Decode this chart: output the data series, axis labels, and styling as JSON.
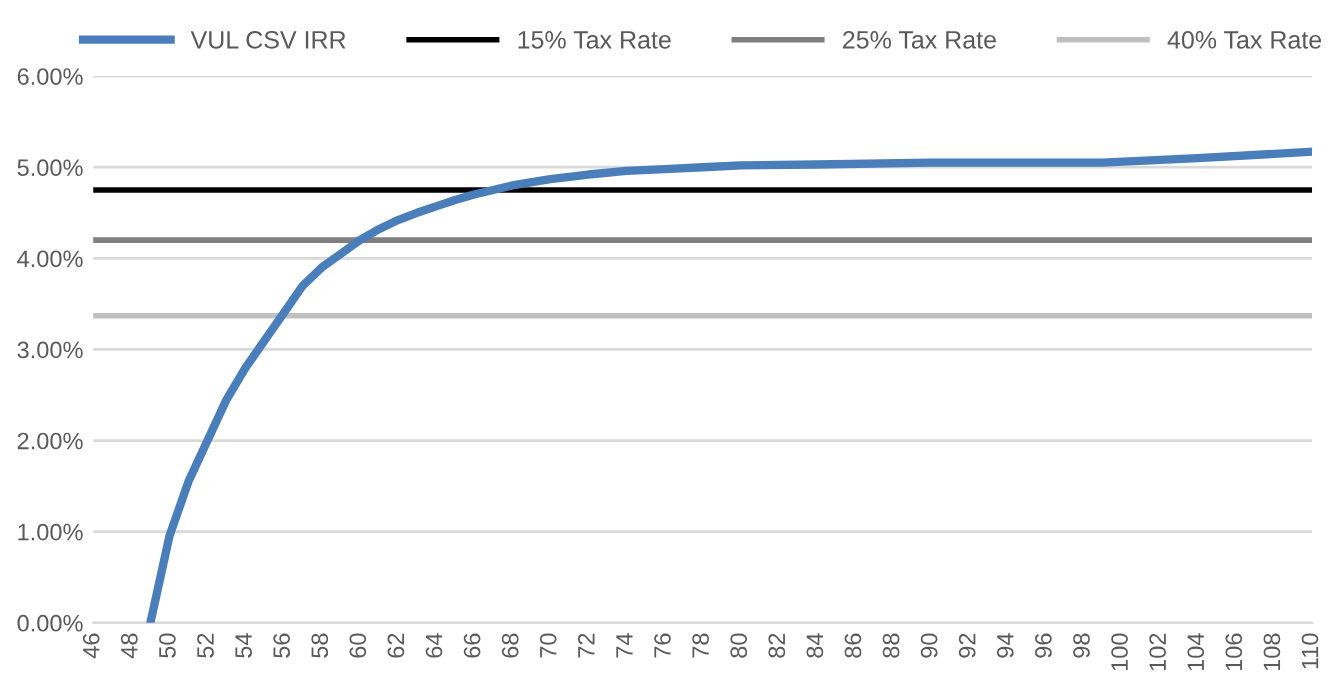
{
  "chart_data": {
    "type": "line",
    "legend": "top",
    "grid": "y",
    "xlim": [
      46,
      110
    ],
    "xticks": [
      46,
      48,
      50,
      52,
      54,
      56,
      58,
      60,
      62,
      64,
      66,
      68,
      70,
      72,
      74,
      76,
      78,
      80,
      82,
      84,
      86,
      88,
      90,
      92,
      94,
      96,
      98,
      100,
      102,
      104,
      106,
      108,
      110
    ],
    "ylim": [
      0,
      6
    ],
    "yticks": [
      {
        "value": 0,
        "label": "0.00%"
      },
      {
        "value": 1,
        "label": "1.00%"
      },
      {
        "value": 2,
        "label": "2.00%"
      },
      {
        "value": 3,
        "label": "3.00%"
      },
      {
        "value": 4,
        "label": "4.00%"
      },
      {
        "value": 5,
        "label": "5.00%"
      },
      {
        "value": 6,
        "label": "6.00%"
      }
    ],
    "series": [
      {
        "name": "VUL CSV IRR",
        "color": "#4a7ebb",
        "x": [
          49,
          50,
          51,
          52,
          53,
          54,
          55,
          56,
          57,
          58,
          59,
          60,
          61,
          62,
          63,
          64,
          65,
          66,
          67,
          68,
          70,
          72,
          74,
          76,
          78,
          80,
          84,
          90,
          99,
          104,
          110
        ],
        "values": [
          0,
          0.95,
          1.55,
          2.0,
          2.45,
          2.8,
          3.1,
          3.4,
          3.7,
          3.9,
          4.05,
          4.2,
          4.32,
          4.42,
          4.5,
          4.57,
          4.64,
          4.7,
          4.75,
          4.8,
          4.87,
          4.92,
          4.96,
          4.98,
          5.0,
          5.02,
          5.03,
          5.05,
          5.05,
          5.1,
          5.17
        ]
      },
      {
        "name": "15% Tax Rate",
        "color": "#000000",
        "x": [
          46,
          110
        ],
        "values": [
          4.75,
          4.75
        ]
      },
      {
        "name": "25% Tax Rate",
        "color": "#7f7f7f",
        "x": [
          46,
          110
        ],
        "values": [
          4.2,
          4.2
        ]
      },
      {
        "name": "40% Tax Rate",
        "color": "#bfbfbf",
        "x": [
          46,
          110
        ],
        "values": [
          3.37,
          3.37
        ]
      }
    ]
  }
}
